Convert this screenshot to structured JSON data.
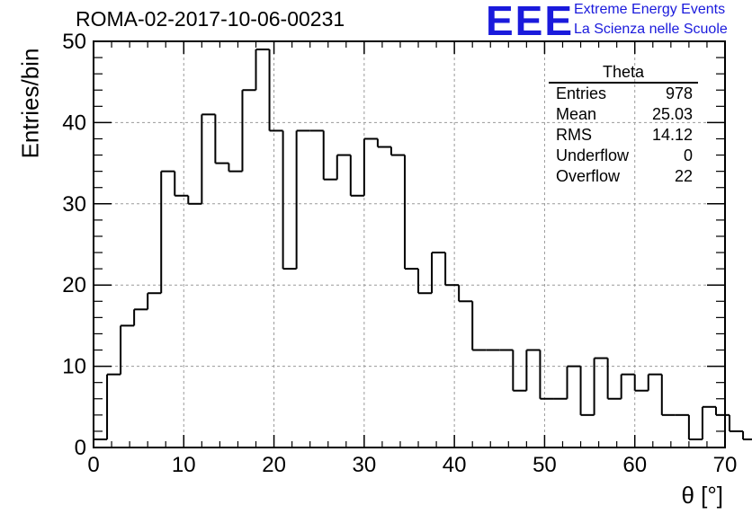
{
  "title": "ROMA-02-2017-10-06-00231",
  "logo": {
    "text": "EEE",
    "line1": "Extreme Energy Events",
    "line2": "La Scienza nelle Scuole",
    "color": "#1a1adc"
  },
  "stats": {
    "title": "Theta",
    "rows": [
      {
        "label": "Entries",
        "value": "978"
      },
      {
        "label": "Mean",
        "value": "25.03"
      },
      {
        "label": "RMS",
        "value": "14.12"
      },
      {
        "label": "Underflow",
        "value": "0"
      },
      {
        "label": "Overflow",
        "value": "22"
      }
    ]
  },
  "chart_data": {
    "type": "bar",
    "style": "step-histogram",
    "title": "ROMA-02-2017-10-06-00231",
    "xlabel": "θ [°]",
    "ylabel": "Entries/bin",
    "xlim": [
      0,
      70
    ],
    "ylim": [
      0,
      50
    ],
    "xticks": [
      "0",
      "10",
      "20",
      "30",
      "40",
      "50",
      "60",
      "70"
    ],
    "yticks": [
      "0",
      "10",
      "20",
      "30",
      "40",
      "50"
    ],
    "grid": true,
    "legend": "top-right",
    "bin_width": 1.5,
    "bin_start": 0,
    "values": [
      1,
      9,
      15,
      17,
      19,
      34,
      31,
      30,
      41,
      35,
      34,
      44,
      49,
      39,
      22,
      39,
      39,
      33,
      36,
      31,
      38,
      37,
      36,
      22,
      19,
      24,
      20,
      18,
      12,
      12,
      12,
      7,
      12,
      6,
      6,
      10,
      4,
      11,
      6,
      9,
      7,
      9,
      4,
      4,
      1,
      5,
      4,
      2,
      1
    ],
    "line_color": "#000000"
  }
}
